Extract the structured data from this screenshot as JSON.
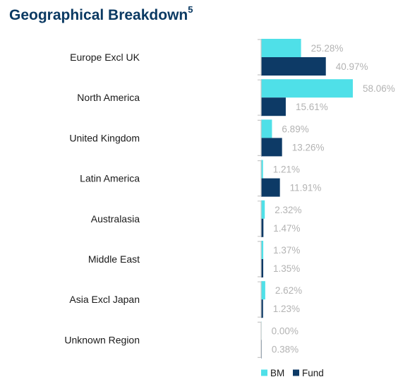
{
  "header": {
    "title": "Geographical Breakdown",
    "footnote": "5"
  },
  "colors": {
    "bm": "#4fe0e8",
    "fund": "#0d3a66",
    "axis": "#c8c8c8",
    "value_label": "#b3b3b3",
    "title": "#0b3a63"
  },
  "chart_data": {
    "type": "bar",
    "orientation": "horizontal",
    "title": "Geographical Breakdown",
    "categories": [
      "Europe Excl UK",
      "North America",
      "United Kingdom",
      "Latin America",
      "Australasia",
      "Middle East",
      "Asia Excl Japan",
      "Unknown Region"
    ],
    "series": [
      {
        "name": "BM",
        "values": [
          25.28,
          58.06,
          6.89,
          1.21,
          2.32,
          1.37,
          2.62,
          0.0
        ],
        "labels": [
          "25.28%",
          "58.06%",
          "6.89%",
          "1.21%",
          "2.32%",
          "1.37%",
          "2.62%",
          "0.00%"
        ]
      },
      {
        "name": "Fund",
        "values": [
          40.97,
          15.61,
          13.26,
          11.91,
          1.47,
          1.35,
          1.23,
          0.38
        ],
        "labels": [
          "40.97%",
          "15.61%",
          "13.26%",
          "11.91%",
          "1.47%",
          "1.35%",
          "1.23%",
          "0.38%"
        ]
      }
    ],
    "xlim": [
      0,
      58.06
    ],
    "grid": false,
    "legend_position": "bottom-right"
  }
}
